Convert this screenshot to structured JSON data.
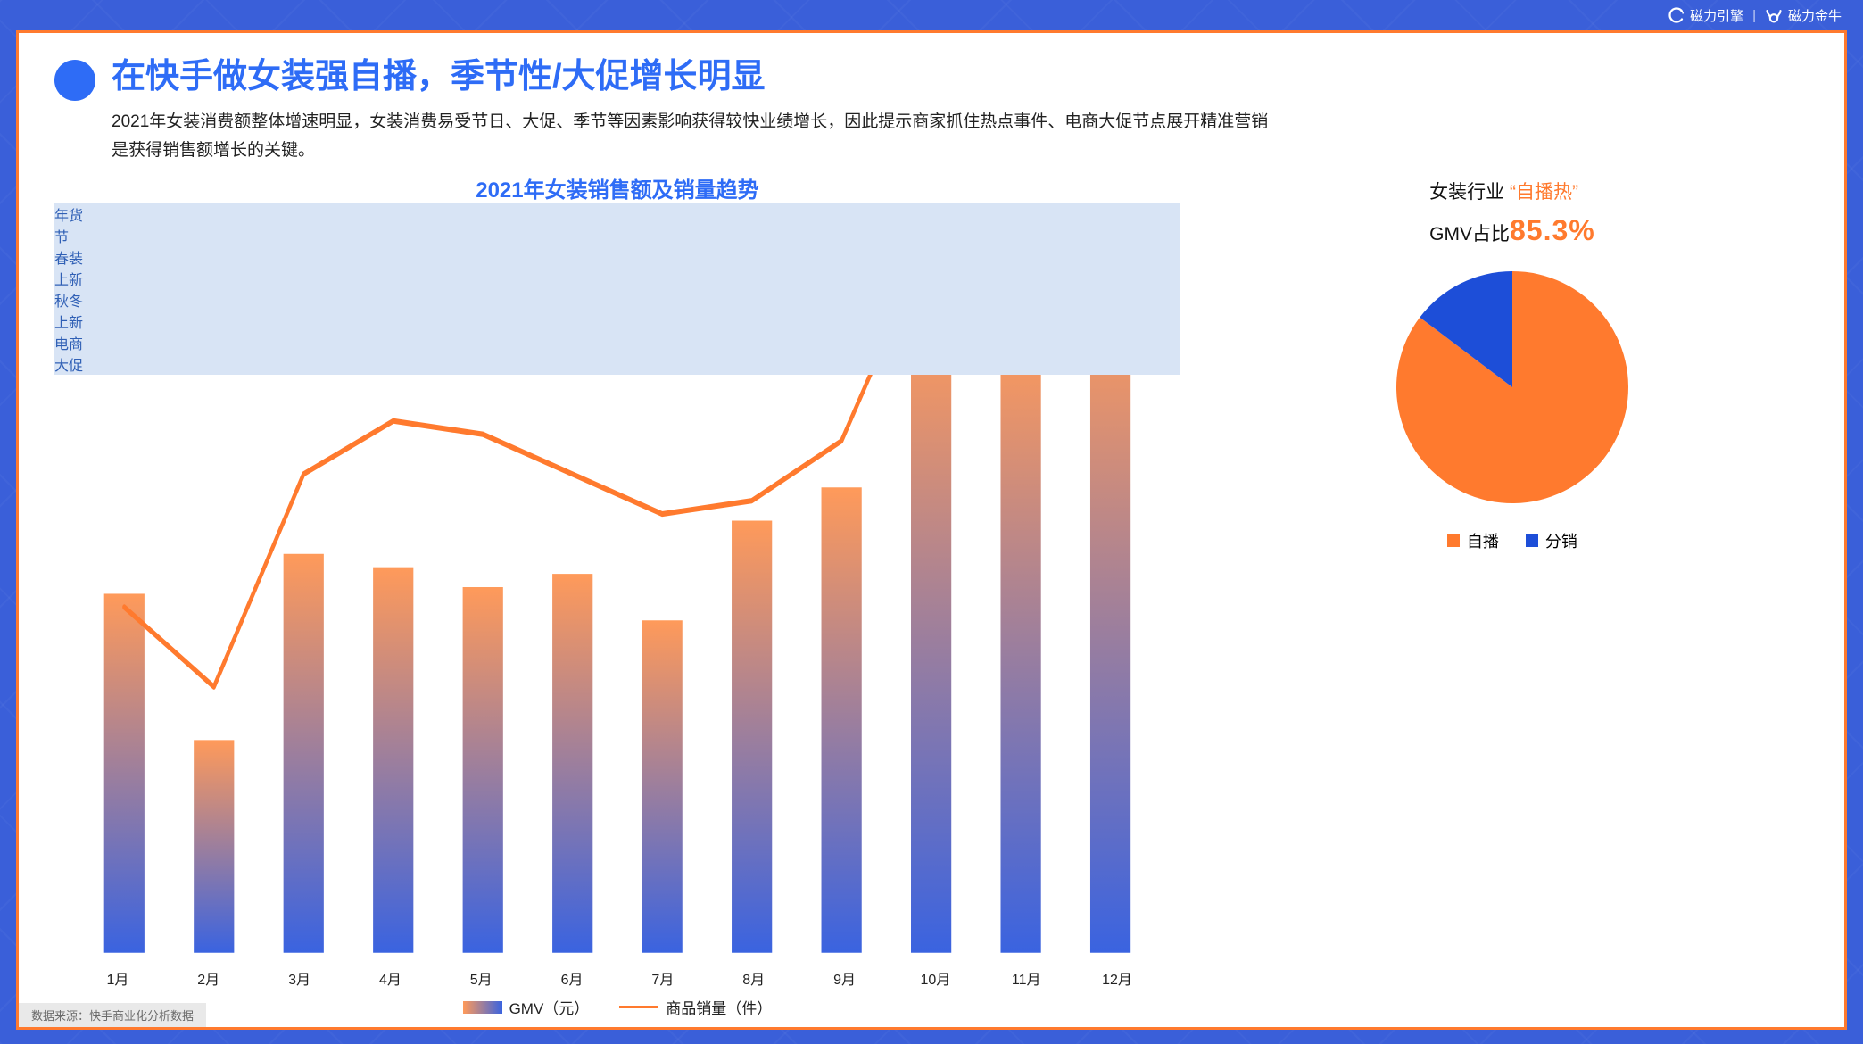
{
  "page": {
    "background_color": "#3a5fd9",
    "frame_border_color": "#ff7a2e",
    "frame_background": "#ffffff"
  },
  "topbar": {
    "brand1": "磁力引擎",
    "brand2": "磁力金牛",
    "text_color": "#ffffff"
  },
  "header": {
    "bullet_color": "#2e6cf6",
    "title": "在快手做女装强自播，季节性/大促增长明显",
    "title_color": "#2e6cf6",
    "subtitle": "2021年女装消费额整体增速明显，女装消费易受节日、大促、季节等因素影响获得较快业绩增长，因此提示商家抓住热点事件、电商大促节点展开精准营销是获得销售额增长的关键。"
  },
  "bar_chart": {
    "type": "bar+line",
    "title": "2021年女装销售额及销量趋势",
    "title_color": "#2e6cf6",
    "categories": [
      "1月",
      "2月",
      "3月",
      "4月",
      "5月",
      "6月",
      "7月",
      "8月",
      "9月",
      "10月",
      "11月",
      "12月"
    ],
    "bar_values": [
      54,
      32,
      60,
      58,
      55,
      57,
      50,
      65,
      70,
      95,
      93,
      98
    ],
    "line_values": [
      52,
      40,
      72,
      80,
      78,
      72,
      66,
      68,
      77,
      108,
      94,
      104
    ],
    "ylim": [
      0,
      110
    ],
    "bar_gradient_top": "#ff9a5a",
    "bar_gradient_bottom": "#3a63e0",
    "bar_width": 0.45,
    "line_color": "#ff7a2e",
    "line_width": 3,
    "axis_label_color": "#222222",
    "axis_label_fontsize": 16,
    "legend": {
      "gmv": "GMV（元）",
      "line": "商品销量（件）"
    },
    "callouts": [
      {
        "label": "年货\n节",
        "month_index": 0,
        "y_offset": -20
      },
      {
        "label": "春装\n上新",
        "month_index": 3,
        "y_offset": -10
      },
      {
        "label": "秋冬\n上新",
        "month_index": 7,
        "y_offset": -6
      },
      {
        "label": "电商\n大促",
        "month_index": 11,
        "y_offset": 6
      }
    ],
    "callout_bg": "#d8e4f5",
    "callout_border": "#5b8bd9",
    "callout_text_color": "#2f5fb5"
  },
  "pie_chart": {
    "type": "pie",
    "heading_line1_prefix": "女装行业",
    "heading_line1_quote": "“自播热”",
    "heading_line2_prefix": "GMV占比",
    "percent_text": "85.3%",
    "accent_color": "#ff7a2e",
    "slices": [
      {
        "label": "自播",
        "value": 85.3,
        "color": "#ff7a2e"
      },
      {
        "label": "分销",
        "value": 14.7,
        "color": "#1d4ed8"
      }
    ],
    "radius": 130,
    "start_angle_deg": -90,
    "background_color": "#ffffff",
    "legend_fontsize": 18
  },
  "footer": {
    "source": "数据来源：快手商业化分析数据",
    "bg": "#e9e9e9",
    "color": "#6a6a6a"
  }
}
